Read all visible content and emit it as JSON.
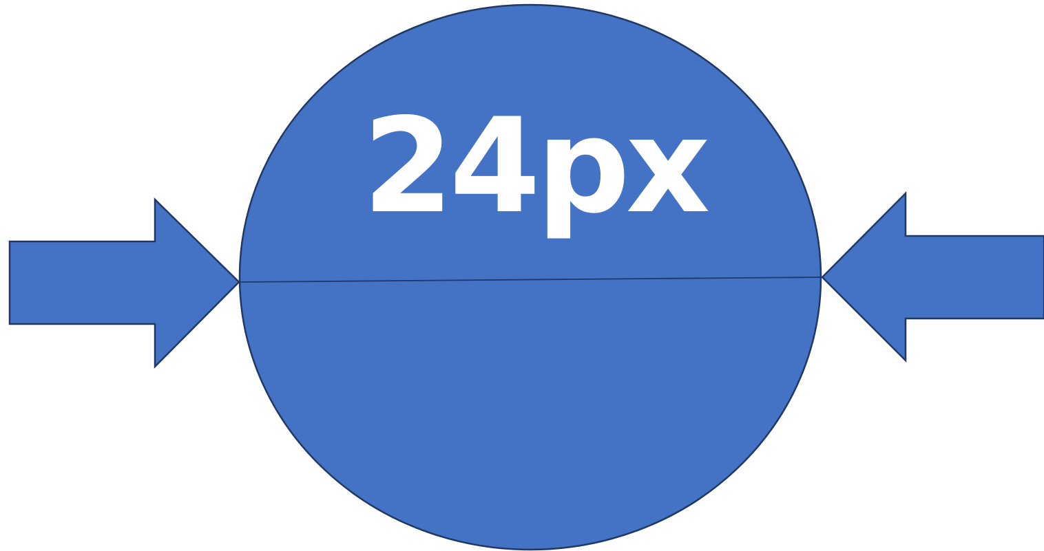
{
  "diagram": {
    "label": "24px",
    "colors": {
      "fill": "#4472C4",
      "stroke": "#1F3864",
      "text": "#FFFFFF",
      "background": "#FFFFFF"
    },
    "shapes": [
      {
        "kind": "ellipse",
        "name": "circle-shape"
      },
      {
        "kind": "line",
        "name": "diameter-line"
      },
      {
        "kind": "arrow",
        "name": "left-arrow-icon",
        "direction": "right"
      },
      {
        "kind": "arrow",
        "name": "right-arrow-icon",
        "direction": "left"
      }
    ]
  }
}
